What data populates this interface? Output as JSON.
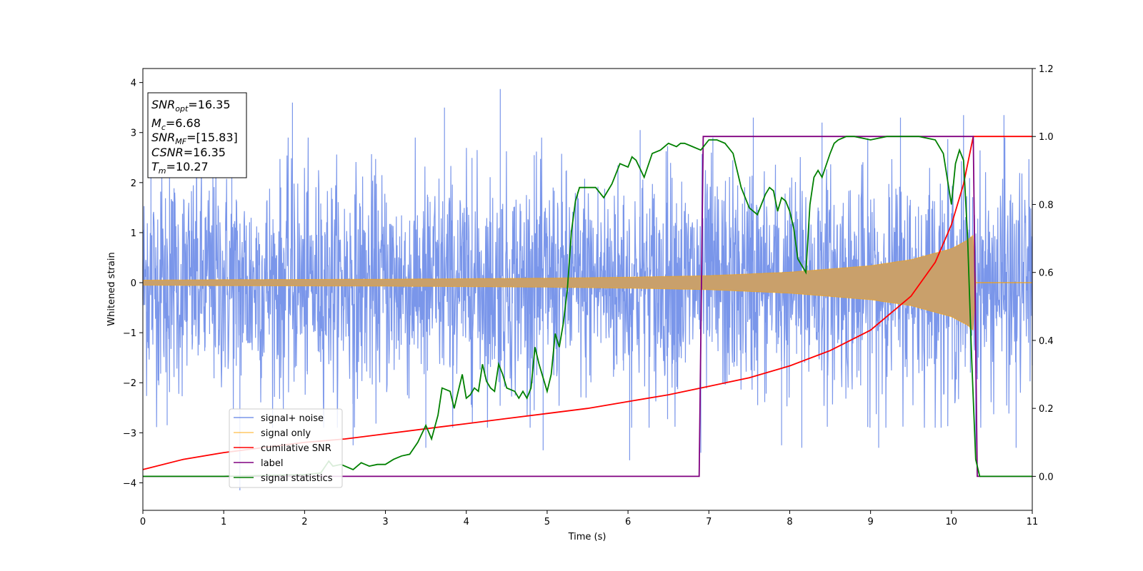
{
  "chart_data": {
    "type": "line",
    "title": "",
    "xlabel": "Time (s)",
    "ylabel": "Whitened strain",
    "xlim": [
      0,
      11
    ],
    "ylim": [
      -4.55,
      4.28
    ],
    "y2lim": [
      -0.1,
      1.2
    ],
    "x_ticks": [
      "0",
      "1",
      "2",
      "3",
      "4",
      "5",
      "6",
      "7",
      "8",
      "9",
      "10",
      "11"
    ],
    "y_ticks": [
      "−4",
      "−3",
      "−2",
      "−1",
      "0",
      "1",
      "2",
      "3",
      "4"
    ],
    "y2_ticks": [
      "0.0",
      "0.2",
      "0.4",
      "0.6",
      "0.8",
      "1.0",
      "1.2"
    ],
    "grid": false,
    "legend_position": "lower-left",
    "annotation": {
      "lines": [
        {
          "base": "SNR",
          "sub": "opt",
          "value": "=16.35"
        },
        {
          "base": "M",
          "sub": "c",
          "value": "=6.68"
        },
        {
          "base": "SNR",
          "sub": "MF",
          "value": "=[15.83]"
        },
        {
          "base": "CSNR",
          "sub": "",
          "value": "=16.35"
        },
        {
          "base": "T",
          "sub": "m",
          "value": "=10.27"
        }
      ]
    },
    "series": [
      {
        "name": "signal+ noise",
        "axis": "left",
        "color": "#4169e1",
        "noise_envelope_approx": 2.2,
        "peak_x": [
          0.1,
          1.1,
          1.85,
          3.73,
          4.42,
          6.15,
          7.05,
          7.55,
          8.4,
          9.37,
          10.15,
          10.65
        ],
        "peak_y": [
          2.3,
          3.6,
          3.6,
          3.5,
          3.87,
          3.05,
          2.9,
          3.3,
          3.2,
          3.3,
          3.35,
          3.35
        ],
        "trough_x": [
          0.3,
          1.2,
          2.6,
          3.5,
          4.95,
          6.02,
          6.9,
          7.9,
          8.15,
          9.1,
          10.3,
          10.8
        ],
        "trough_y": [
          -2.85,
          -4.15,
          -3.25,
          -3.3,
          -3.35,
          -3.55,
          -3.4,
          -3.25,
          -3.3,
          -3.3,
          -3.45,
          -3.3
        ]
      },
      {
        "name": "signal only",
        "axis": "left",
        "color": "#ffa500",
        "x": [
          0,
          1,
          2,
          3,
          4,
          5,
          6,
          7,
          8,
          9,
          9.5,
          10,
          10.2,
          10.27,
          10.3,
          11
        ],
        "amplitude": [
          0.05,
          0.06,
          0.065,
          0.07,
          0.08,
          0.09,
          0.11,
          0.14,
          0.21,
          0.34,
          0.46,
          0.68,
          0.85,
          0.95,
          0.0,
          0.0
        ]
      },
      {
        "name": "cumilative SNR",
        "axis": "right",
        "color": "#ff0000",
        "x": [
          0,
          0.5,
          1,
          1.5,
          2,
          2.5,
          3,
          3.5,
          4,
          4.5,
          5,
          5.5,
          6,
          6.5,
          7,
          7.5,
          8,
          8.5,
          9,
          9.5,
          9.8,
          10,
          10.15,
          10.27,
          10.3,
          11
        ],
        "values": [
          0.02,
          0.05,
          0.07,
          0.085,
          0.1,
          0.11,
          0.125,
          0.14,
          0.155,
          0.17,
          0.185,
          0.2,
          0.22,
          0.24,
          0.265,
          0.29,
          0.325,
          0.37,
          0.43,
          0.53,
          0.63,
          0.74,
          0.86,
          1.0,
          1.0,
          1.0
        ]
      },
      {
        "name": "label",
        "axis": "right",
        "color": "#800080",
        "x": [
          0,
          6.88,
          6.93,
          10.27,
          10.32,
          11
        ],
        "values": [
          0.0,
          0.0,
          1.0,
          1.0,
          0.0,
          0.0
        ]
      },
      {
        "name": "signal statistics",
        "axis": "right",
        "color": "#008000",
        "x": [
          0,
          1.0,
          2.0,
          2.2,
          2.3,
          2.35,
          2.45,
          2.6,
          2.7,
          2.8,
          2.9,
          3.0,
          3.1,
          3.2,
          3.3,
          3.4,
          3.5,
          3.57,
          3.65,
          3.7,
          3.8,
          3.85,
          3.9,
          3.95,
          4.0,
          4.05,
          4.1,
          4.15,
          4.2,
          4.25,
          4.3,
          4.35,
          4.4,
          4.45,
          4.5,
          4.6,
          4.65,
          4.7,
          4.75,
          4.8,
          4.85,
          4.9,
          5.0,
          5.05,
          5.1,
          5.15,
          5.2,
          5.25,
          5.3,
          5.35,
          5.4,
          5.5,
          5.6,
          5.7,
          5.8,
          5.9,
          6.0,
          6.05,
          6.1,
          6.2,
          6.3,
          6.4,
          6.5,
          6.6,
          6.65,
          6.7,
          6.8,
          6.9,
          7.0,
          7.1,
          7.2,
          7.3,
          7.4,
          7.5,
          7.6,
          7.7,
          7.75,
          7.8,
          7.85,
          7.9,
          7.95,
          8.0,
          8.05,
          8.1,
          8.2,
          8.25,
          8.3,
          8.35,
          8.4,
          8.5,
          8.55,
          8.6,
          8.7,
          8.8,
          9.0,
          9.2,
          9.4,
          9.6,
          9.8,
          9.9,
          10.0,
          10.05,
          10.1,
          10.15,
          10.2,
          10.25,
          10.3,
          10.35,
          10.45,
          10.6,
          11
        ],
        "values": [
          0.0,
          0.0,
          0.005,
          0.01,
          0.045,
          0.03,
          0.035,
          0.02,
          0.04,
          0.03,
          0.035,
          0.035,
          0.05,
          0.06,
          0.065,
          0.1,
          0.15,
          0.11,
          0.18,
          0.26,
          0.25,
          0.2,
          0.25,
          0.3,
          0.23,
          0.24,
          0.26,
          0.25,
          0.33,
          0.28,
          0.26,
          0.25,
          0.33,
          0.3,
          0.26,
          0.25,
          0.23,
          0.25,
          0.23,
          0.26,
          0.38,
          0.33,
          0.25,
          0.3,
          0.42,
          0.38,
          0.45,
          0.55,
          0.72,
          0.81,
          0.85,
          0.85,
          0.85,
          0.82,
          0.86,
          0.92,
          0.91,
          0.94,
          0.93,
          0.88,
          0.95,
          0.96,
          0.98,
          0.97,
          0.98,
          0.98,
          0.97,
          0.96,
          0.99,
          0.99,
          0.98,
          0.95,
          0.85,
          0.79,
          0.77,
          0.83,
          0.85,
          0.84,
          0.78,
          0.82,
          0.81,
          0.78,
          0.73,
          0.64,
          0.6,
          0.8,
          0.88,
          0.9,
          0.88,
          0.95,
          0.98,
          0.99,
          1.0,
          1.0,
          0.99,
          1.0,
          1.0,
          1.0,
          0.99,
          0.95,
          0.8,
          0.92,
          0.96,
          0.93,
          0.7,
          0.35,
          0.05,
          0.0,
          0.0,
          0.0,
          0.0
        ]
      }
    ]
  }
}
